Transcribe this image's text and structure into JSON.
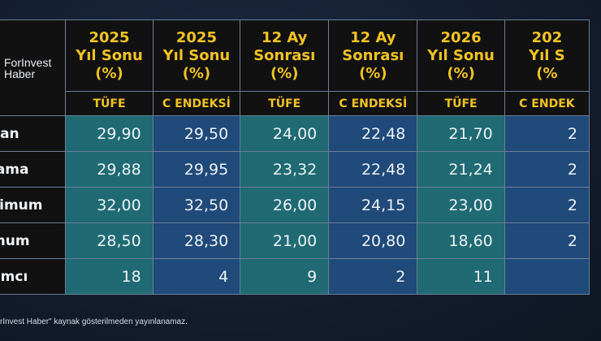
{
  "brand": {
    "line1": "ForInvest",
    "line2": "Haber"
  },
  "columns": [
    {
      "lines": [
        "2025",
        "Yıl Sonu",
        "(%)"
      ],
      "sub": "TÜFE",
      "tone": "teal"
    },
    {
      "lines": [
        "2025",
        "Yıl Sonu",
        "(%)"
      ],
      "sub": "C ENDEKSİ",
      "tone": "blue"
    },
    {
      "lines": [
        "12 Ay",
        "Sonrası",
        "(%)"
      ],
      "sub": "TÜFE",
      "tone": "teal"
    },
    {
      "lines": [
        "12 Ay",
        "Sonrası",
        "(%)"
      ],
      "sub": "C ENDEKSİ",
      "tone": "blue"
    },
    {
      "lines": [
        "2026",
        "Yıl Sonu",
        "(%)"
      ],
      "sub": "TÜFE",
      "tone": "teal"
    },
    {
      "lines": [
        "202",
        "Yıl S",
        "(%"
      ],
      "sub": "C ENDEK",
      "tone": "blue"
    }
  ],
  "rows": [
    {
      "label": "yan",
      "values": [
        "29,90",
        "29,50",
        "24,00",
        "22,48",
        "21,70",
        "2"
      ]
    },
    {
      "label": "lama",
      "values": [
        "29,88",
        "29,95",
        "23,32",
        "22,48",
        "21,24",
        "2"
      ]
    },
    {
      "label": "simum",
      "values": [
        "32,00",
        "32,50",
        "26,00",
        "24,15",
        "23,00",
        "2"
      ]
    },
    {
      "label": "mum",
      "values": [
        "28,50",
        "28,30",
        "21,00",
        "20,80",
        "18,60",
        "2"
      ]
    },
    {
      "label": "lımcı",
      "values": [
        "18",
        "4",
        "9",
        "2",
        "11",
        ""
      ]
    }
  ],
  "footnote": "rInvest Haber\" kaynak gösterilmeden yayınlanamaz."
}
